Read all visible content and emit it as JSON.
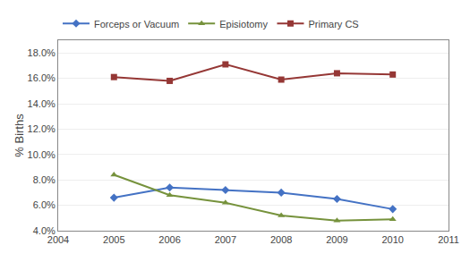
{
  "chart_data": {
    "type": "line",
    "ylabel": "% Births",
    "x": [
      2005,
      2006,
      2007,
      2008,
      2009,
      2010
    ],
    "series": [
      {
        "name": "Forceps or Vacuum",
        "color": "#4472C4",
        "marker": "diamond",
        "values": [
          0.066,
          0.074,
          0.072,
          0.07,
          0.065,
          0.057
        ]
      },
      {
        "name": "Episiotomy",
        "color": "#76923C",
        "marker": "triangle-up",
        "values": [
          0.084,
          0.068,
          0.062,
          0.052,
          0.048,
          0.049
        ]
      },
      {
        "name": "Primary CS",
        "color": "#953735",
        "marker": "square",
        "values": [
          0.161,
          0.158,
          0.171,
          0.159,
          0.164,
          0.163
        ]
      }
    ],
    "xlim": [
      2004,
      2011
    ],
    "xticks": [
      2004,
      2005,
      2006,
      2007,
      2008,
      2009,
      2010,
      2011
    ],
    "ylim": [
      0.04,
      0.19
    ],
    "yticks": [
      {
        "value": 0.04,
        "label": "4.0%"
      },
      {
        "value": 0.06,
        "label": "6.0%"
      },
      {
        "value": 0.08,
        "label": "8.0%"
      },
      {
        "value": 0.1,
        "label": "10.0%"
      },
      {
        "value": 0.12,
        "label": "12.0%"
      },
      {
        "value": 0.14,
        "label": "14.0%"
      },
      {
        "value": 0.16,
        "label": "16.0%"
      },
      {
        "value": 0.18,
        "label": "18.0%"
      }
    ],
    "grid": true,
    "legend": "top"
  }
}
